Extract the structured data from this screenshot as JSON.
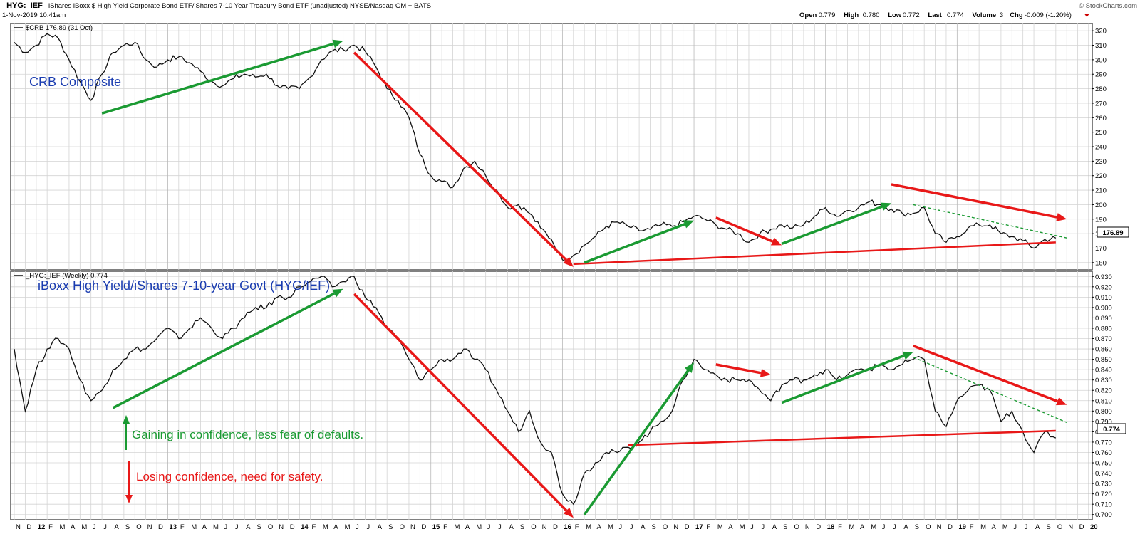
{
  "header": {
    "symbol": "_HYG:_IEF",
    "description": "iShares iBoxx $ High Yield Corporate Bond ETF/iShares 7-10 Year Treasury Bond ETF (unadjusted) NYSE/Nasdaq GM + BATS",
    "datetime": "1-Nov-2019 10:41am",
    "credit": "© StockCharts.com",
    "quote": [
      {
        "label": "Open",
        "value": "0.779"
      },
      {
        "label": "High",
        "value": "0.780"
      },
      {
        "label": "Low",
        "value": "0.772"
      },
      {
        "label": "Last",
        "value": "0.774"
      },
      {
        "label": "Volume",
        "value": "3"
      },
      {
        "label": "Chg",
        "value": "-0.009 (-1.20%)"
      }
    ]
  },
  "colors": {
    "green": "#1a9a32",
    "red": "#e81818",
    "blue": "#1a3cb0",
    "grid": "#d4d4d4",
    "line": "#111111"
  },
  "chart_data": [
    {
      "type": "line",
      "legend": "$CRB 176.89 (31 Oct)",
      "title": "CRB Composite",
      "last_label": "176.89",
      "ylim": [
        155,
        325
      ],
      "yticks": [
        160,
        170,
        180,
        190,
        200,
        210,
        220,
        230,
        240,
        250,
        260,
        270,
        280,
        290,
        300,
        310,
        320
      ],
      "x": [
        "2011-11",
        "2011-12",
        "2012-01",
        "2012-02",
        "2012-03",
        "2012-04",
        "2012-05",
        "2012-06",
        "2012-07",
        "2012-08",
        "2012-09",
        "2012-10",
        "2012-11",
        "2012-12",
        "2013-01",
        "2013-02",
        "2013-03",
        "2013-04",
        "2013-05",
        "2013-06",
        "2013-07",
        "2013-08",
        "2013-09",
        "2013-10",
        "2013-11",
        "2013-12",
        "2014-01",
        "2014-02",
        "2014-03",
        "2014-04",
        "2014-05",
        "2014-06",
        "2014-07",
        "2014-08",
        "2014-09",
        "2014-10",
        "2014-11",
        "2014-12",
        "2015-01",
        "2015-02",
        "2015-03",
        "2015-04",
        "2015-05",
        "2015-06",
        "2015-07",
        "2015-08",
        "2015-09",
        "2015-10",
        "2015-11",
        "2015-12",
        "2016-01",
        "2016-02",
        "2016-03",
        "2016-04",
        "2016-05",
        "2016-06",
        "2016-07",
        "2016-08",
        "2016-09",
        "2016-10",
        "2016-11",
        "2016-12",
        "2017-01",
        "2017-02",
        "2017-03",
        "2017-04",
        "2017-05",
        "2017-06",
        "2017-07",
        "2017-08",
        "2017-09",
        "2017-10",
        "2017-11",
        "2017-12",
        "2018-01",
        "2018-02",
        "2018-03",
        "2018-04",
        "2018-05",
        "2018-06",
        "2018-07",
        "2018-08",
        "2018-09",
        "2018-10",
        "2018-11",
        "2018-12",
        "2019-01",
        "2019-02",
        "2019-03",
        "2019-04",
        "2019-05",
        "2019-06",
        "2019-07",
        "2019-08",
        "2019-09",
        "2019-10"
      ],
      "values": [
        312,
        305,
        310,
        318,
        315,
        300,
        285,
        272,
        290,
        305,
        310,
        312,
        300,
        295,
        300,
        302,
        298,
        292,
        285,
        282,
        287,
        290,
        288,
        290,
        282,
        280,
        280,
        288,
        300,
        306,
        307,
        310,
        306,
        295,
        280,
        272,
        260,
        235,
        220,
        216,
        212,
        225,
        230,
        220,
        210,
        198,
        200,
        194,
        184,
        176,
        162,
        165,
        172,
        178,
        185,
        188,
        185,
        182,
        183,
        186,
        185,
        188,
        192,
        190,
        186,
        183,
        180,
        174,
        180,
        183,
        186,
        184,
        186,
        192,
        198,
        192,
        196,
        198,
        202,
        200,
        197,
        194,
        194,
        198,
        180,
        174,
        178,
        184,
        186,
        186,
        180,
        178,
        175,
        170,
        176,
        176.89
      ]
    },
    {
      "type": "line",
      "legend": "_HYG:_IEF (Weekly) 0.774",
      "title": "iBoxx High Yield/iShares 7-10-year Govt (HYG/IEF)",
      "last_label": "0.774",
      "ylim": [
        0.695,
        0.935
      ],
      "yticks": [
        0.7,
        0.71,
        0.72,
        0.73,
        0.74,
        0.75,
        0.76,
        0.77,
        0.78,
        0.79,
        0.8,
        0.81,
        0.82,
        0.83,
        0.84,
        0.85,
        0.86,
        0.87,
        0.88,
        0.89,
        0.9,
        0.91,
        0.92,
        0.93
      ],
      "x": [
        "2011-11",
        "2011-12",
        "2012-01",
        "2012-02",
        "2012-03",
        "2012-04",
        "2012-05",
        "2012-06",
        "2012-07",
        "2012-08",
        "2012-09",
        "2012-10",
        "2012-11",
        "2012-12",
        "2013-01",
        "2013-02",
        "2013-03",
        "2013-04",
        "2013-05",
        "2013-06",
        "2013-07",
        "2013-08",
        "2013-09",
        "2013-10",
        "2013-11",
        "2013-12",
        "2014-01",
        "2014-02",
        "2014-03",
        "2014-04",
        "2014-05",
        "2014-06",
        "2014-07",
        "2014-08",
        "2014-09",
        "2014-10",
        "2014-11",
        "2014-12",
        "2015-01",
        "2015-02",
        "2015-03",
        "2015-04",
        "2015-05",
        "2015-06",
        "2015-07",
        "2015-08",
        "2015-09",
        "2015-10",
        "2015-11",
        "2015-12",
        "2016-01",
        "2016-02",
        "2016-03",
        "2016-04",
        "2016-05",
        "2016-06",
        "2016-07",
        "2016-08",
        "2016-09",
        "2016-10",
        "2016-11",
        "2016-12",
        "2017-01",
        "2017-02",
        "2017-03",
        "2017-04",
        "2017-05",
        "2017-06",
        "2017-07",
        "2017-08",
        "2017-09",
        "2017-10",
        "2017-11",
        "2017-12",
        "2018-01",
        "2018-02",
        "2018-03",
        "2018-04",
        "2018-05",
        "2018-06",
        "2018-07",
        "2018-08",
        "2018-09",
        "2018-10",
        "2018-11",
        "2018-12",
        "2019-01",
        "2019-02",
        "2019-03",
        "2019-04",
        "2019-05",
        "2019-06",
        "2019-07",
        "2019-08",
        "2019-09",
        "2019-10"
      ],
      "values": [
        0.86,
        0.8,
        0.84,
        0.86,
        0.87,
        0.86,
        0.83,
        0.81,
        0.82,
        0.84,
        0.85,
        0.86,
        0.86,
        0.87,
        0.88,
        0.87,
        0.88,
        0.89,
        0.88,
        0.87,
        0.88,
        0.89,
        0.9,
        0.9,
        0.91,
        0.91,
        0.92,
        0.925,
        0.93,
        0.92,
        0.925,
        0.93,
        0.91,
        0.9,
        0.88,
        0.87,
        0.85,
        0.83,
        0.84,
        0.85,
        0.85,
        0.86,
        0.85,
        0.84,
        0.82,
        0.8,
        0.78,
        0.8,
        0.77,
        0.76,
        0.72,
        0.71,
        0.74,
        0.75,
        0.76,
        0.76,
        0.765,
        0.77,
        0.78,
        0.79,
        0.8,
        0.83,
        0.85,
        0.84,
        0.835,
        0.83,
        0.83,
        0.83,
        0.82,
        0.81,
        0.825,
        0.83,
        0.83,
        0.835,
        0.84,
        0.83,
        0.835,
        0.84,
        0.84,
        0.845,
        0.84,
        0.845,
        0.85,
        0.85,
        0.8,
        0.785,
        0.81,
        0.82,
        0.825,
        0.82,
        0.79,
        0.8,
        0.78,
        0.76,
        0.78,
        0.774
      ]
    }
  ],
  "x_axis": {
    "labels": [
      {
        "t": "N",
        "k": 0
      },
      {
        "t": "D",
        "k": 1
      },
      {
        "t": "12",
        "k": 2,
        "year": true
      },
      {
        "t": "F",
        "k": 3
      },
      {
        "t": "M",
        "k": 4
      },
      {
        "t": "A",
        "k": 5
      },
      {
        "t": "M",
        "k": 6
      },
      {
        "t": "J",
        "k": 7
      },
      {
        "t": "J",
        "k": 8
      },
      {
        "t": "A",
        "k": 9
      },
      {
        "t": "S",
        "k": 10
      },
      {
        "t": "O",
        "k": 11
      },
      {
        "t": "N",
        "k": 12
      },
      {
        "t": "D",
        "k": 13
      },
      {
        "t": "13",
        "k": 14,
        "year": true
      },
      {
        "t": "F",
        "k": 15
      },
      {
        "t": "M",
        "k": 16
      },
      {
        "t": "A",
        "k": 17
      },
      {
        "t": "M",
        "k": 18
      },
      {
        "t": "J",
        "k": 19
      },
      {
        "t": "J",
        "k": 20
      },
      {
        "t": "A",
        "k": 21
      },
      {
        "t": "S",
        "k": 22
      },
      {
        "t": "O",
        "k": 23
      },
      {
        "t": "N",
        "k": 24
      },
      {
        "t": "D",
        "k": 25
      },
      {
        "t": "14",
        "k": 26,
        "year": true
      },
      {
        "t": "F",
        "k": 27
      },
      {
        "t": "M",
        "k": 28
      },
      {
        "t": "A",
        "k": 29
      },
      {
        "t": "M",
        "k": 30
      },
      {
        "t": "J",
        "k": 31
      },
      {
        "t": "J",
        "k": 32
      },
      {
        "t": "A",
        "k": 33
      },
      {
        "t": "S",
        "k": 34
      },
      {
        "t": "O",
        "k": 35
      },
      {
        "t": "N",
        "k": 36
      },
      {
        "t": "D",
        "k": 37
      },
      {
        "t": "15",
        "k": 38,
        "year": true
      },
      {
        "t": "F",
        "k": 39
      },
      {
        "t": "M",
        "k": 40
      },
      {
        "t": "A",
        "k": 41
      },
      {
        "t": "M",
        "k": 42
      },
      {
        "t": "J",
        "k": 43
      },
      {
        "t": "J",
        "k": 44
      },
      {
        "t": "A",
        "k": 45
      },
      {
        "t": "S",
        "k": 46
      },
      {
        "t": "O",
        "k": 47
      },
      {
        "t": "N",
        "k": 48
      },
      {
        "t": "D",
        "k": 49
      },
      {
        "t": "16",
        "k": 50,
        "year": true
      },
      {
        "t": "F",
        "k": 51
      },
      {
        "t": "M",
        "k": 52
      },
      {
        "t": "A",
        "k": 53
      },
      {
        "t": "M",
        "k": 54
      },
      {
        "t": "J",
        "k": 55
      },
      {
        "t": "J",
        "k": 56
      },
      {
        "t": "A",
        "k": 57
      },
      {
        "t": "S",
        "k": 58
      },
      {
        "t": "O",
        "k": 59
      },
      {
        "t": "N",
        "k": 60
      },
      {
        "t": "D",
        "k": 61
      },
      {
        "t": "17",
        "k": 62,
        "year": true
      },
      {
        "t": "F",
        "k": 63
      },
      {
        "t": "M",
        "k": 64
      },
      {
        "t": "A",
        "k": 65
      },
      {
        "t": "M",
        "k": 66
      },
      {
        "t": "J",
        "k": 67
      },
      {
        "t": "J",
        "k": 68
      },
      {
        "t": "A",
        "k": 69
      },
      {
        "t": "S",
        "k": 70
      },
      {
        "t": "O",
        "k": 71
      },
      {
        "t": "N",
        "k": 72
      },
      {
        "t": "D",
        "k": 73
      },
      {
        "t": "18",
        "k": 74,
        "year": true
      },
      {
        "t": "F",
        "k": 75
      },
      {
        "t": "M",
        "k": 76
      },
      {
        "t": "A",
        "k": 77
      },
      {
        "t": "M",
        "k": 78
      },
      {
        "t": "J",
        "k": 79
      },
      {
        "t": "J",
        "k": 80
      },
      {
        "t": "A",
        "k": 81
      },
      {
        "t": "S",
        "k": 82
      },
      {
        "t": "O",
        "k": 83
      },
      {
        "t": "N",
        "k": 84
      },
      {
        "t": "D",
        "k": 85
      },
      {
        "t": "19",
        "k": 86,
        "year": true
      },
      {
        "t": "F",
        "k": 87
      },
      {
        "t": "M",
        "k": 88
      },
      {
        "t": "A",
        "k": 89
      },
      {
        "t": "M",
        "k": 90
      },
      {
        "t": "J",
        "k": 91
      },
      {
        "t": "J",
        "k": 92
      },
      {
        "t": "A",
        "k": 93
      },
      {
        "t": "S",
        "k": 94
      },
      {
        "t": "O",
        "k": 95
      },
      {
        "t": "N",
        "k": 96
      },
      {
        "t": "D",
        "k": 97
      },
      {
        "t": "20",
        "k": 98,
        "year": true
      }
    ]
  },
  "annotations": {
    "gaining": "Gaining in confidence, less fear of defaults.",
    "losing": "Losing confidence, need for safety."
  },
  "arrows": {
    "top": [
      {
        "from": [
          "2012-07",
          263
        ],
        "to": [
          "2014-05",
          313
        ],
        "color": "green"
      },
      {
        "from": [
          "2014-06",
          305
        ],
        "to": [
          "2016-02",
          157
        ],
        "color": "red"
      },
      {
        "from": [
          "2016-03",
          160
        ],
        "to": [
          "2017-01",
          189
        ],
        "color": "green"
      },
      {
        "from": [
          "2017-03",
          191
        ],
        "to": [
          "2017-09",
          172
        ],
        "color": "red"
      },
      {
        "from": [
          "2017-09",
          173
        ],
        "to": [
          "2018-07",
          201
        ],
        "color": "green"
      },
      {
        "from": [
          "2018-07",
          214
        ],
        "to": [
          "2019-11",
          190
        ],
        "color": "red"
      }
    ],
    "top_lines": [
      {
        "from": [
          "2016-02",
          159
        ],
        "to": [
          "2019-10",
          174
        ],
        "color": "red",
        "dashed": false
      },
      {
        "from": [
          "2018-09",
          200
        ],
        "to": [
          "2019-11",
          177
        ],
        "color": "green",
        "dashed": true
      }
    ],
    "bottom": [
      {
        "from": [
          "2012-08",
          0.803
        ],
        "to": [
          "2014-05",
          0.918
        ],
        "color": "green"
      },
      {
        "from": [
          "2014-06",
          0.913
        ],
        "to": [
          "2016-02",
          0.697
        ],
        "color": "red"
      },
      {
        "from": [
          "2016-03",
          0.7
        ],
        "to": [
          "2017-01",
          0.847
        ],
        "color": "green"
      },
      {
        "from": [
          "2017-03",
          0.845
        ],
        "to": [
          "2017-08",
          0.835
        ],
        "color": "red"
      },
      {
        "from": [
          "2017-09",
          0.808
        ],
        "to": [
          "2018-09",
          0.857
        ],
        "color": "green"
      },
      {
        "from": [
          "2018-09",
          0.863
        ],
        "to": [
          "2019-11",
          0.806
        ],
        "color": "red"
      }
    ],
    "bottom_lines": [
      {
        "from": [
          "2016-07",
          0.767
        ],
        "to": [
          "2019-10",
          0.781
        ],
        "color": "red",
        "dashed": false
      },
      {
        "from": [
          "2018-09",
          0.852
        ],
        "to": [
          "2019-11",
          0.789
        ],
        "color": "green",
        "dashed": true
      }
    ]
  }
}
